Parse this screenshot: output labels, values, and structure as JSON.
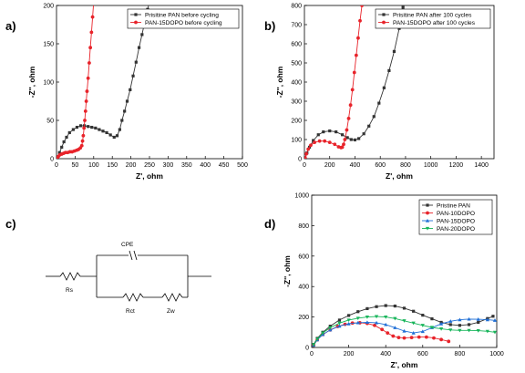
{
  "panel_labels": {
    "a": "a)",
    "b": "b)",
    "c": "c)",
    "d": "d)"
  },
  "circuit": {
    "labels": {
      "cpe": "CPE",
      "rs": "Rs",
      "rct": "Rct",
      "zw": "Zw"
    }
  },
  "colors": {
    "black": "#333333",
    "red": "#e8232a",
    "blue": "#1f6fd6",
    "green": "#17b55a"
  },
  "chart_data": [
    {
      "id": "a",
      "type": "line",
      "xlabel": "Z', ohm",
      "ylabel": "-Z'', ohm",
      "xlim": [
        0,
        500
      ],
      "ylim": [
        0,
        200
      ],
      "xticks": [
        0,
        50,
        100,
        150,
        200,
        250,
        300,
        350,
        400,
        450,
        500
      ],
      "yticks": [
        0,
        50,
        100,
        150,
        200
      ],
      "legend": "top-right",
      "series": [
        {
          "name": "Prisitine PAN before cycling",
          "color": "#333333",
          "marker": "square",
          "x": [
            3,
            8,
            14,
            20,
            27,
            35,
            45,
            55,
            65,
            75,
            85,
            95,
            105,
            115,
            125,
            135,
            145,
            155,
            163,
            170,
            176,
            183,
            190,
            198,
            206,
            214,
            222,
            230,
            238,
            245,
            250
          ],
          "y": [
            2,
            8,
            15,
            22,
            28,
            34,
            38,
            41,
            43,
            43,
            42,
            41,
            40,
            38,
            36,
            34,
            31,
            28,
            30,
            38,
            50,
            62,
            75,
            90,
            108,
            126,
            145,
            162,
            180,
            195,
            205
          ]
        },
        {
          "name": "PAN-15DOPO before cycling",
          "color": "#e8232a",
          "marker": "circle",
          "x": [
            2,
            5,
            9,
            14,
            19,
            24,
            30,
            36,
            42,
            48,
            54,
            59,
            64,
            68,
            70,
            72,
            74,
            76,
            78,
            80,
            82,
            85,
            88,
            91,
            94,
            97,
            100
          ],
          "y": [
            1,
            3,
            5,
            6,
            7,
            8,
            8,
            9,
            9,
            10,
            11,
            12,
            14,
            17,
            23,
            30,
            40,
            50,
            62,
            75,
            88,
            105,
            125,
            145,
            165,
            185,
            205
          ]
        }
      ]
    },
    {
      "id": "b",
      "type": "line",
      "xlabel": "Z', ohm",
      "ylabel": "-Z'', ohm",
      "xlim": [
        0,
        1500
      ],
      "ylim": [
        0,
        800
      ],
      "xticks": [
        0,
        200,
        400,
        600,
        800,
        1000,
        1200,
        1400
      ],
      "yticks": [
        0,
        100,
        200,
        300,
        400,
        500,
        600,
        700,
        800
      ],
      "legend": "top-right",
      "series": [
        {
          "name": "Prisitine PAN after 100 cycles",
          "color": "#333333",
          "marker": "square",
          "x": [
            5,
            20,
            40,
            70,
            110,
            150,
            200,
            250,
            300,
            340,
            370,
            400,
            430,
            470,
            510,
            550,
            590,
            630,
            670,
            710,
            750,
            780
          ],
          "y": [
            5,
            30,
            60,
            95,
            125,
            140,
            145,
            140,
            125,
            110,
            100,
            98,
            105,
            130,
            170,
            220,
            290,
            370,
            460,
            560,
            680,
            790
          ]
        },
        {
          "name": "PAN-15DOPO after 100 cycles",
          "color": "#e8232a",
          "marker": "circle",
          "x": [
            5,
            15,
            30,
            50,
            80,
            120,
            160,
            200,
            240,
            270,
            290,
            300,
            310,
            320,
            335,
            350,
            365,
            380,
            395,
            410,
            425,
            440,
            455
          ],
          "y": [
            5,
            25,
            50,
            70,
            85,
            92,
            92,
            85,
            75,
            62,
            58,
            60,
            75,
            100,
            150,
            210,
            280,
            360,
            450,
            540,
            630,
            720,
            800
          ]
        }
      ]
    },
    {
      "id": "d",
      "type": "line",
      "xlabel": "Z', ohm",
      "ylabel": "-Z'', ohm",
      "xlim": [
        0,
        1000
      ],
      "ylim": [
        0,
        1000
      ],
      "xticks": [
        0,
        200,
        400,
        600,
        800,
        1000
      ],
      "yticks": [
        0,
        200,
        400,
        600,
        800,
        1000
      ],
      "legend": "top-right",
      "series": [
        {
          "name": "Pristine PAN",
          "color": "#333333",
          "marker": "square",
          "x": [
            10,
            30,
            60,
            100,
            150,
            200,
            250,
            300,
            350,
            400,
            450,
            500,
            550,
            600,
            650,
            700,
            750,
            800,
            850,
            900,
            950,
            980
          ],
          "y": [
            20,
            60,
            100,
            140,
            180,
            210,
            235,
            255,
            268,
            275,
            272,
            258,
            238,
            212,
            188,
            165,
            150,
            145,
            150,
            165,
            190,
            205
          ]
        },
        {
          "name": "PAN-10DOPO",
          "color": "#e8232a",
          "marker": "circle",
          "x": [
            10,
            30,
            60,
            100,
            140,
            180,
            220,
            260,
            300,
            340,
            380,
            410,
            440,
            470,
            500,
            540,
            580,
            620,
            660,
            700,
            740
          ],
          "y": [
            15,
            50,
            85,
            115,
            138,
            152,
            160,
            162,
            158,
            145,
            118,
            95,
            75,
            65,
            62,
            65,
            68,
            68,
            62,
            52,
            40
          ]
        },
        {
          "name": "PAN-15DOPO",
          "color": "#1f6fd6",
          "marker": "triangle-up",
          "x": [
            10,
            30,
            60,
            100,
            150,
            200,
            250,
            300,
            350,
            400,
            450,
            500,
            550,
            600,
            650,
            700,
            750,
            800,
            850,
            900,
            950,
            990
          ],
          "y": [
            15,
            50,
            85,
            115,
            140,
            155,
            162,
            165,
            162,
            150,
            130,
            108,
            95,
            105,
            130,
            155,
            172,
            182,
            186,
            185,
            182,
            178
          ]
        },
        {
          "name": "PAN-20DOPO",
          "color": "#17b55a",
          "marker": "triangle-down",
          "x": [
            10,
            30,
            60,
            100,
            150,
            200,
            250,
            300,
            350,
            400,
            450,
            500,
            550,
            600,
            650,
            700,
            750,
            800,
            850,
            900,
            950,
            990
          ],
          "y": [
            18,
            55,
            95,
            130,
            160,
            180,
            192,
            200,
            203,
            200,
            190,
            175,
            160,
            145,
            132,
            122,
            115,
            112,
            112,
            110,
            106,
            100
          ]
        }
      ]
    }
  ]
}
